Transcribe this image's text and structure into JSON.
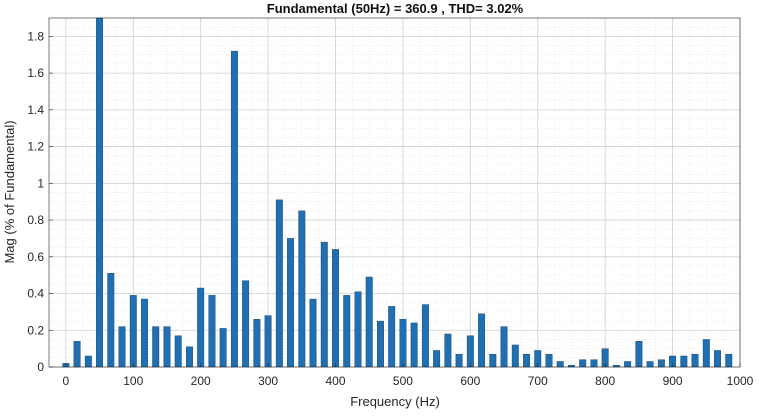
{
  "chart_data": {
    "type": "bar",
    "title": "Fundamental (50Hz) = 360.9 , THD= 3.02%",
    "xlabel": "Frequency (Hz)",
    "ylabel": "Mag (% of Fundamental)",
    "xlim": [
      -25,
      1000
    ],
    "ylim": [
      0,
      1.9
    ],
    "x_ticks": [
      0,
      100,
      200,
      300,
      400,
      500,
      600,
      700,
      800,
      900,
      1000
    ],
    "y_ticks": [
      0,
      0.2,
      0.4,
      0.6,
      0.8,
      1,
      1.2,
      1.4,
      1.6,
      1.8
    ],
    "x_tick_labels": [
      "0",
      "100",
      "200",
      "300",
      "400",
      "500",
      "600",
      "700",
      "800",
      "900",
      "1000"
    ],
    "y_tick_labels": [
      "0",
      "0.2",
      "0.4",
      "0.6",
      "0.8",
      "1",
      "1.2",
      "1.4",
      "1.6",
      "1.8"
    ],
    "grid": "major and minor",
    "bar_color": "#1f6fb2",
    "x": [
      0,
      16.67,
      33.33,
      50,
      66.67,
      83.33,
      100,
      116.67,
      133.33,
      150,
      166.67,
      183.33,
      200,
      216.67,
      233.33,
      250,
      266.67,
      283.33,
      300,
      316.67,
      333.33,
      350,
      366.67,
      383.33,
      400,
      416.67,
      433.33,
      450,
      466.67,
      483.33,
      500,
      516.67,
      533.33,
      550,
      566.67,
      583.33,
      600,
      616.67,
      633.33,
      650,
      666.67,
      683.33,
      700,
      716.67,
      733.33,
      750,
      766.67,
      783.33,
      800,
      816.67,
      833.33,
      850,
      866.67,
      883.33,
      900,
      916.67,
      933.33,
      950,
      966.67,
      983.33
    ],
    "values": [
      0.02,
      0.14,
      0.06,
      1.9,
      0.51,
      0.22,
      0.39,
      0.37,
      0.22,
      0.22,
      0.17,
      0.11,
      0.43,
      0.39,
      0.21,
      1.72,
      0.47,
      0.26,
      0.28,
      0.91,
      0.7,
      0.85,
      0.37,
      0.68,
      0.64,
      0.39,
      0.41,
      0.49,
      0.25,
      0.33,
      0.26,
      0.24,
      0.34,
      0.09,
      0.18,
      0.07,
      0.17,
      0.29,
      0.07,
      0.22,
      0.12,
      0.07,
      0.09,
      0.07,
      0.03,
      0.01,
      0.04,
      0.04,
      0.1,
      0.01,
      0.03,
      0.14,
      0.03,
      0.04,
      0.06,
      0.06,
      0.07,
      0.15,
      0.09,
      0.07
    ]
  }
}
